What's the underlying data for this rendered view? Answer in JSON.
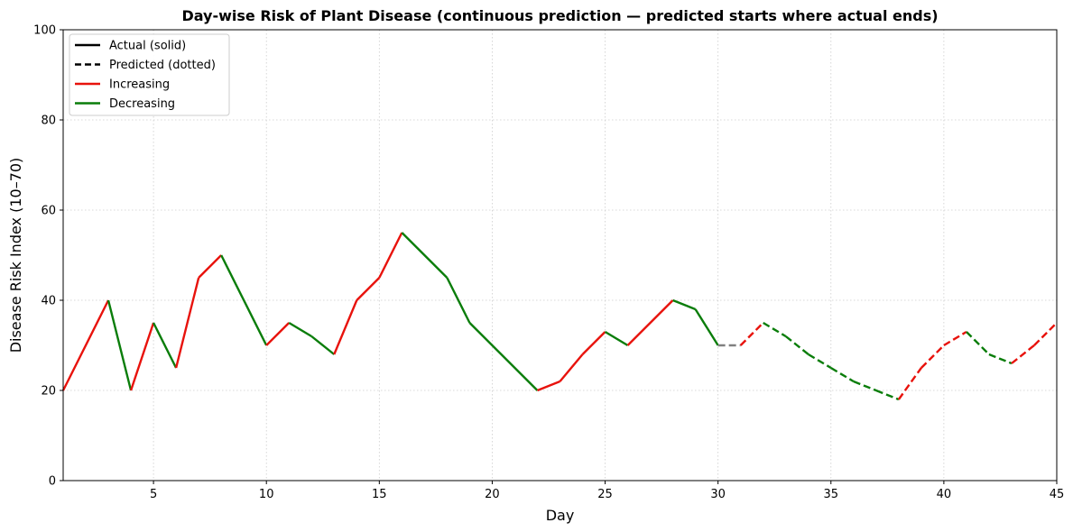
{
  "chart_data": {
    "type": "line",
    "title": "Day-wise Risk of Plant Disease (continuous prediction — predicted starts where actual ends)",
    "xlabel": "Day",
    "ylabel": "Disease Risk Index (10–70)",
    "xlim": [
      1,
      45
    ],
    "ylim": [
      0,
      100
    ],
    "xticks": [
      5,
      10,
      15,
      20,
      25,
      30,
      35,
      40,
      45
    ],
    "yticks": [
      0,
      20,
      40,
      60,
      80,
      100
    ],
    "grid": true,
    "legend_position": "upper-left",
    "legend": [
      {
        "label": "Actual (solid)",
        "color": "#000000",
        "style": "solid"
      },
      {
        "label": "Predicted (dotted)",
        "color": "#000000",
        "style": "dashed"
      },
      {
        "label": "Increasing",
        "color": "#e8120c",
        "style": "solid"
      },
      {
        "label": "Decreasing",
        "color": "#0a7d0a",
        "style": "solid"
      }
    ],
    "colors": {
      "increasing": "#e8120c",
      "decreasing": "#0a7d0a",
      "flat": "#808080"
    },
    "series": [
      {
        "name": "Actual (solid)",
        "style": "solid",
        "x": [
          1,
          3,
          4,
          5,
          6,
          7,
          8,
          10,
          11,
          12,
          13,
          14,
          15,
          16,
          18,
          19,
          22,
          23,
          24,
          25,
          26,
          28,
          29,
          30
        ],
        "y": [
          20,
          40,
          20,
          35,
          25,
          45,
          50,
          30,
          35,
          32,
          28,
          40,
          45,
          55,
          45,
          35,
          20,
          22,
          28,
          33,
          30,
          40,
          38,
          30
        ]
      },
      {
        "name": "Predicted (dotted)",
        "style": "dashed",
        "x": [
          30,
          31,
          32,
          33,
          34,
          35,
          36,
          37,
          38,
          39,
          40,
          41,
          42,
          43,
          44,
          45
        ],
        "y": [
          30,
          30,
          35,
          32,
          28,
          25,
          22,
          20,
          18,
          25,
          30,
          33,
          28,
          26,
          30,
          35
        ]
      }
    ]
  }
}
